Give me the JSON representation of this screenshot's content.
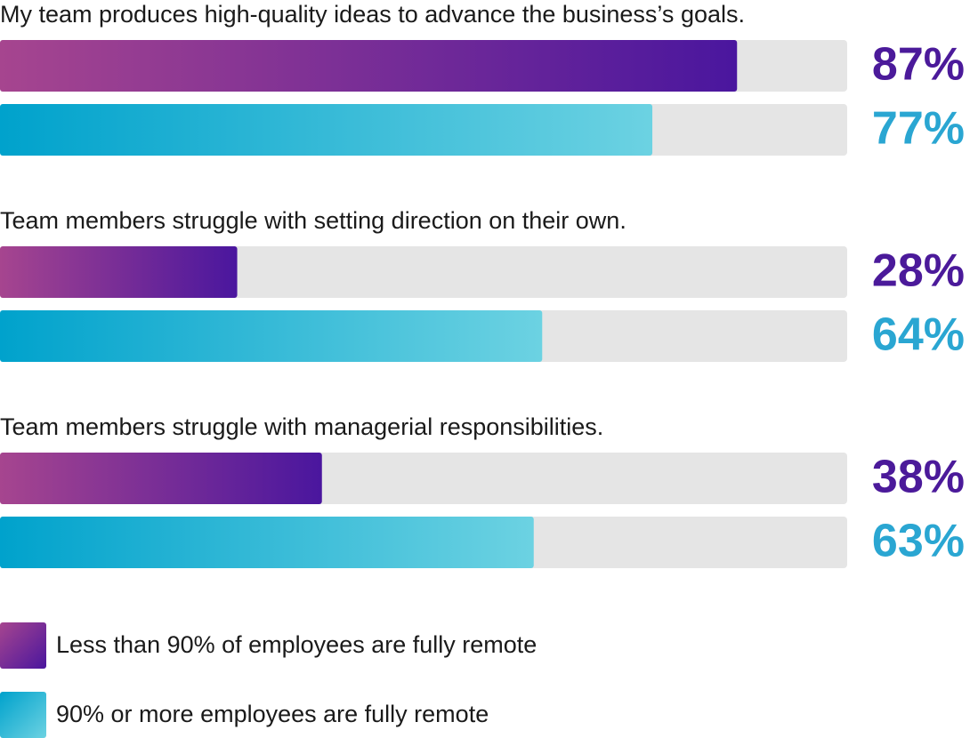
{
  "chart_data": {
    "type": "bar",
    "orientation": "horizontal",
    "categories": [
      "My team produces high-quality ideas to advance the business’s goals.",
      "Team members struggle with setting direction on their own.",
      "Team members struggle with managerial responsibilities."
    ],
    "xlim": [
      0,
      100
    ],
    "track_color": "#e5e5e5",
    "legend": "bottom-left",
    "series": [
      {
        "name": "Less than 90% of employees are fully remote",
        "color": "#4b1a9a",
        "gradient": [
          "#a6458f",
          "#4a169e"
        ],
        "values": [
          87,
          28,
          38
        ],
        "value_labels": [
          "87%",
          "28%",
          "38%"
        ]
      },
      {
        "name": "90% or more employees are fully remote",
        "color": "#2aa6d2",
        "gradient": [
          "#00a2cc",
          "#6cd2e2"
        ],
        "values": [
          77,
          64,
          63
        ],
        "value_labels": [
          "77%",
          "64%",
          "63%"
        ]
      }
    ]
  }
}
